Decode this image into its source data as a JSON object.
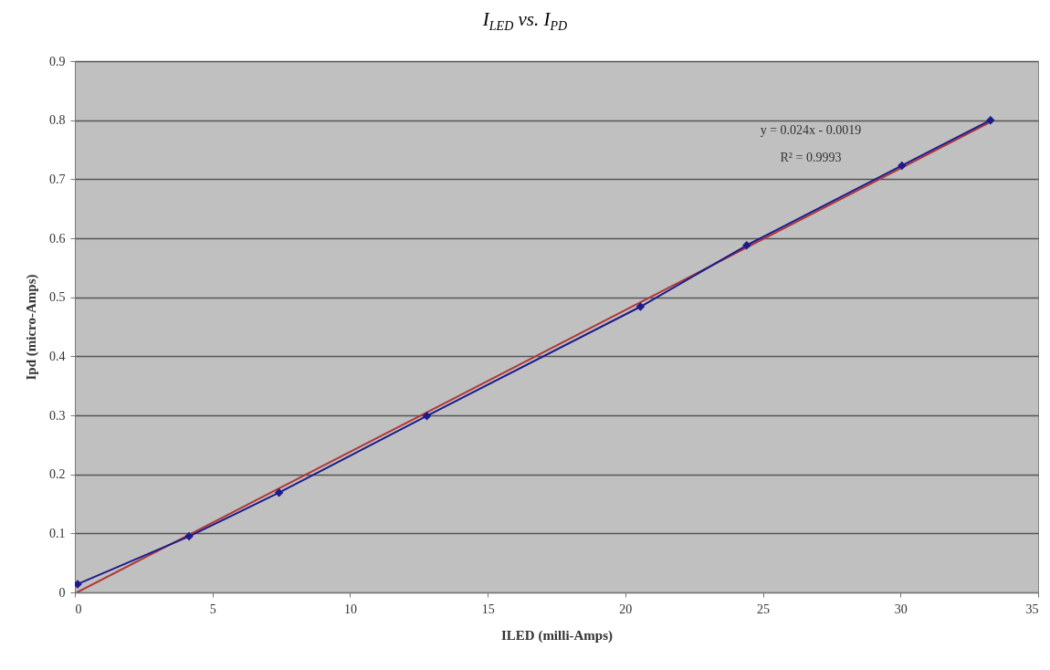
{
  "chart_data": {
    "type": "line",
    "title": "I$_{LED}$ vs. I$_{PD}$",
    "xlabel": "ILED (milli-Amps)",
    "ylabel": "Ipd (micro-Amps)",
    "series": [
      {
        "color": "#1c1c8c",
        "marker": "diamond",
        "x": [
          0.1,
          4.15,
          7.42,
          12.79,
          20.55,
          24.41,
          30.05,
          33.27
        ],
        "values": [
          0.014,
          0.095,
          0.169,
          0.299,
          0.484,
          0.588,
          0.723,
          0.8
        ]
      },
      {
        "color": "#b03838",
        "marker": "none",
        "x": [
          0.08,
          33.27
        ],
        "values": [
          0,
          0.797
        ]
      }
    ],
    "annotations": [
      "y = 0.024x - 0.0019",
      "R² = 0.9993"
    ],
    "xlim": [
      0,
      35
    ],
    "xticks": [
      0,
      5,
      10,
      15,
      20,
      25,
      30,
      35
    ],
    "ylim": [
      0,
      0.9
    ],
    "yticks": [
      0,
      0.1,
      0.2,
      0.3,
      0.4,
      0.5,
      0.6,
      0.7,
      0.8,
      0.9
    ],
    "grid": "y",
    "line_style": "solid"
  }
}
